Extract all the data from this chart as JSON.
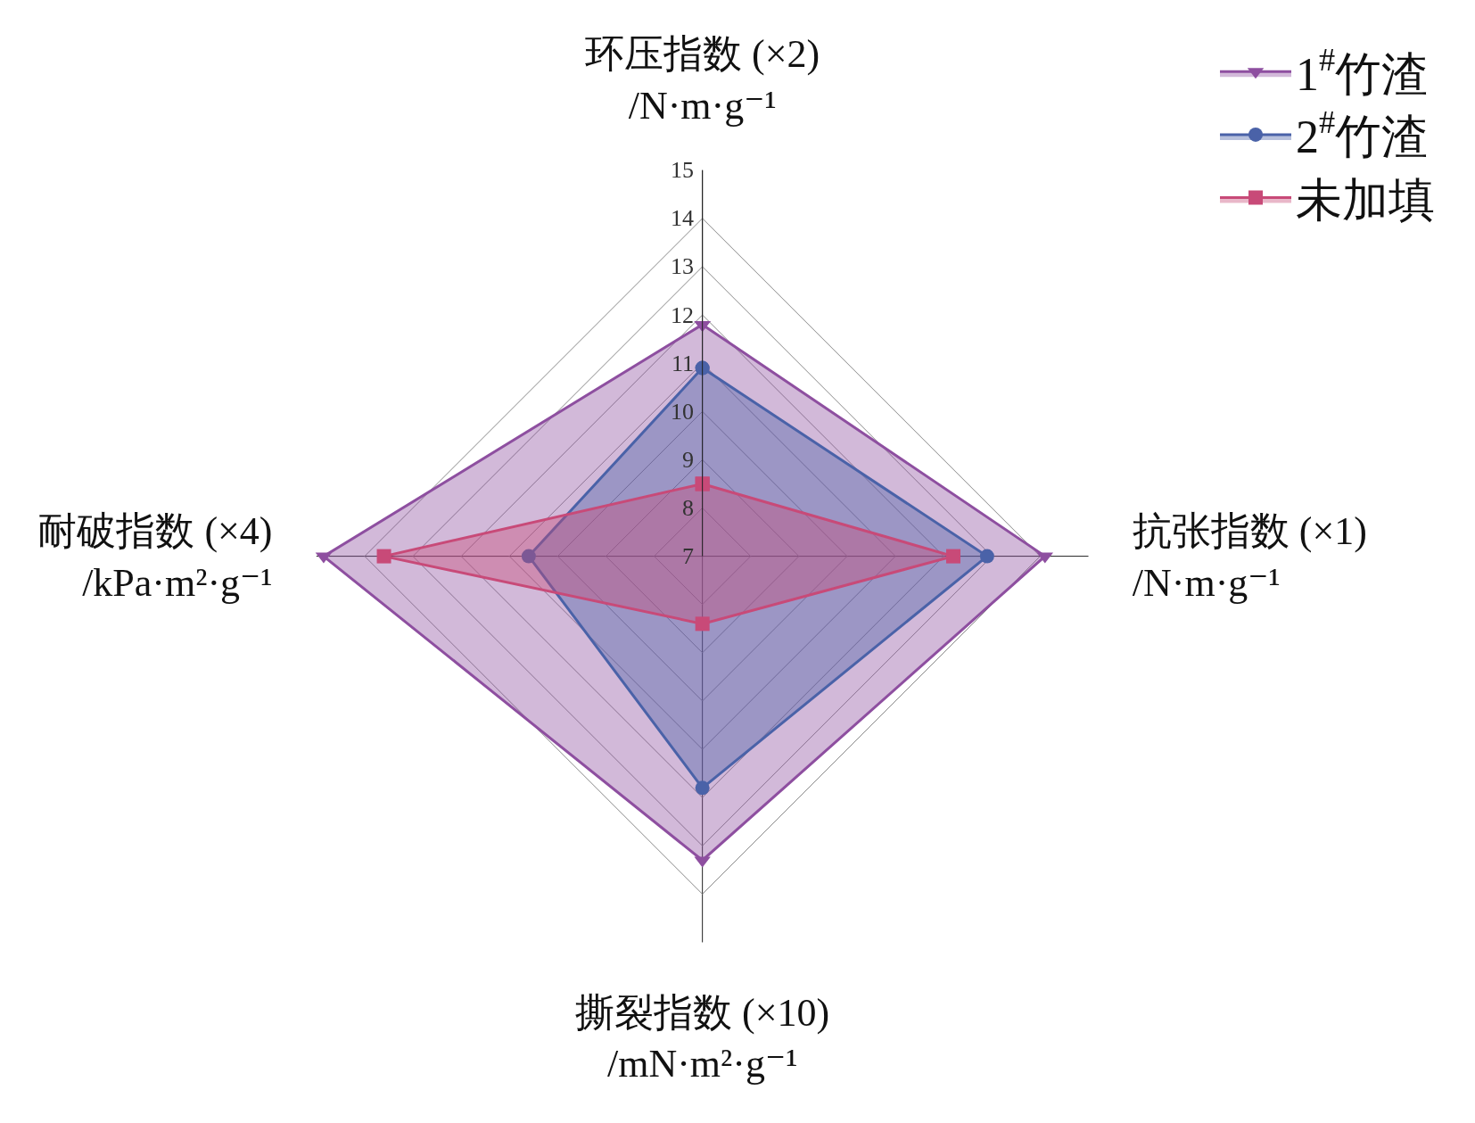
{
  "chart_data": {
    "type": "radar",
    "categories": [
      "环压指数 (×2)\n/N·m·g⁻¹",
      "抗张指数 (×1)\n/N·m·g⁻¹",
      "撕裂指数 (×10)\n/mN·m²·g⁻¹",
      "耐破指数 (×4)\n/kPa·m²·g⁻¹"
    ],
    "series": [
      {
        "name": "1$^{#}$竹渣",
        "color": "#8e4fa0",
        "marker": "triangle",
        "values": [
          11.8,
          14.1,
          13.3,
          14.85
        ]
      },
      {
        "name": "2$^{#}$竹渣",
        "color": "#4a62a8",
        "marker": "circle",
        "values": [
          10.9,
          12.9,
          11.8,
          10.6
        ]
      },
      {
        "name": "未加填",
        "color": "#c84a78",
        "marker": "square",
        "values": [
          8.5,
          12.2,
          8.4,
          13.6
        ]
      }
    ],
    "ylim": [
      7,
      15
    ],
    "yticks": [
      7,
      8,
      9,
      10,
      11,
      12,
      13,
      14,
      15
    ],
    "grid": true,
    "legend": "top right"
  }
}
